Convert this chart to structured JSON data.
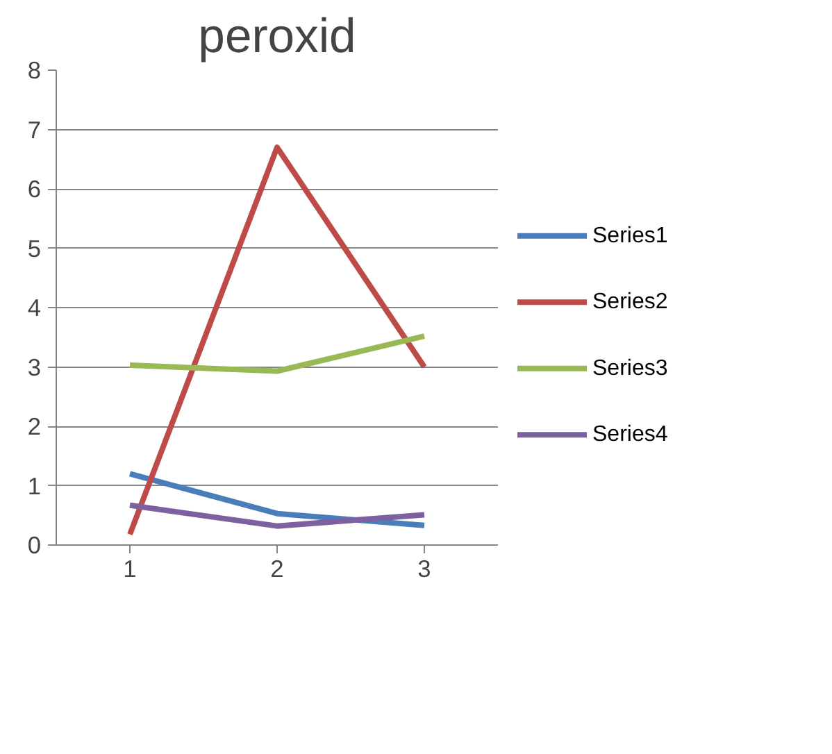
{
  "chart_data": {
    "type": "line",
    "title": "peroxid",
    "categories": [
      "1",
      "2",
      "3"
    ],
    "series": [
      {
        "name": "Series1",
        "color": "#4a7ebb",
        "values": [
          1.2,
          0.53,
          0.33
        ]
      },
      {
        "name": "Series2",
        "color": "#be4b48",
        "values": [
          0.18,
          6.7,
          3.0
        ]
      },
      {
        "name": "Series3",
        "color": "#98b954",
        "values": [
          3.03,
          2.93,
          3.52
        ]
      },
      {
        "name": "Series4",
        "color": "#7d60a0",
        "values": [
          0.67,
          0.32,
          0.51
        ]
      }
    ],
    "ylim": [
      0,
      8
    ],
    "yticks": [
      0,
      1,
      2,
      3,
      4,
      5,
      6,
      7,
      8
    ],
    "grid": "y",
    "legend": "right",
    "marker": "none",
    "line_style": "solid"
  }
}
